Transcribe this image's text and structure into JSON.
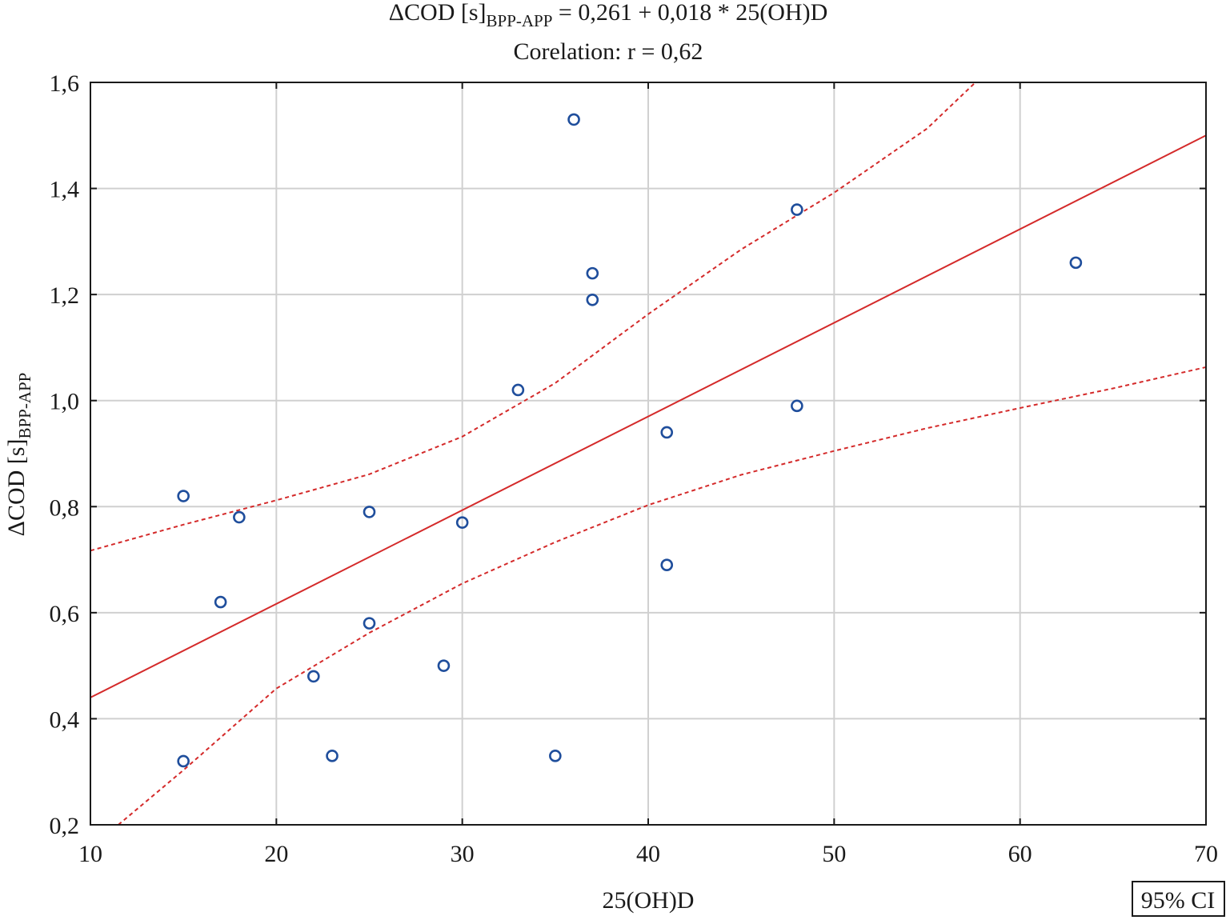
{
  "chart_data": {
    "type": "scatter",
    "title": {
      "lead": "ΔCOD [s]",
      "sub": "BPP-APP",
      "rest": " = 0,261 + 0,018 * 25(OH)D"
    },
    "subtitle": "Corelation: r = 0,62",
    "xlabel": "25(OH)D",
    "ylabel": {
      "lead": "ΔCOD [s]",
      "sub": "BPP-APP"
    },
    "xlim": [
      10,
      70
    ],
    "ylim": [
      0.2,
      1.6
    ],
    "x_ticks": [
      10,
      20,
      30,
      40,
      50,
      60,
      70
    ],
    "y_ticks": [
      0.2,
      0.4,
      0.6,
      0.8,
      1.0,
      1.2,
      1.4,
      1.6
    ],
    "x_tick_labels": [
      "10",
      "20",
      "30",
      "40",
      "50",
      "60",
      "70"
    ],
    "y_tick_labels": [
      "0,2",
      "0,4",
      "0,6",
      "0,8",
      "1,0",
      "1,2",
      "1,4",
      "1,6"
    ],
    "grid": true,
    "points": [
      {
        "x": 15,
        "y": 0.82
      },
      {
        "x": 15,
        "y": 0.32
      },
      {
        "x": 17,
        "y": 0.62
      },
      {
        "x": 18,
        "y": 0.78
      },
      {
        "x": 22,
        "y": 0.48
      },
      {
        "x": 23,
        "y": 0.33
      },
      {
        "x": 25,
        "y": 0.79
      },
      {
        "x": 25,
        "y": 0.58
      },
      {
        "x": 29,
        "y": 0.5
      },
      {
        "x": 30,
        "y": 0.77
      },
      {
        "x": 33,
        "y": 1.02
      },
      {
        "x": 35,
        "y": 0.33
      },
      {
        "x": 36,
        "y": 1.53
      },
      {
        "x": 37,
        "y": 1.24
      },
      {
        "x": 37,
        "y": 1.19
      },
      {
        "x": 41,
        "y": 0.94
      },
      {
        "x": 41,
        "y": 0.69
      },
      {
        "x": 48,
        "y": 1.36
      },
      {
        "x": 48,
        "y": 0.99
      },
      {
        "x": 63,
        "y": 1.26
      }
    ],
    "regression_line": {
      "x": [
        10,
        70
      ],
      "y": [
        0.44,
        1.5
      ]
    },
    "ci_upper": {
      "x": [
        10,
        15,
        20,
        25,
        30,
        35,
        40,
        45,
        50,
        55,
        57.6
      ],
      "y": [
        0.717,
        0.766,
        0.812,
        0.861,
        0.932,
        1.033,
        1.163,
        1.285,
        1.392,
        1.513,
        1.6
      ]
    },
    "ci_lower": {
      "x": [
        11.5,
        15,
        20,
        25,
        30,
        35,
        40,
        45,
        50,
        55,
        60,
        65,
        70
      ],
      "y": [
        0.2,
        0.303,
        0.457,
        0.562,
        0.655,
        0.733,
        0.803,
        0.86,
        0.905,
        0.948,
        0.986,
        1.023,
        1.063
      ]
    },
    "legend": {
      "label": "95% CI",
      "placement": "bottom-right"
    },
    "colors": {
      "points": "#1f4e9c",
      "fit_line": "#d42a2a",
      "ci_line": "#d42a2a",
      "grid": "#d0d0d0",
      "frame": "#1a1a1a"
    }
  }
}
